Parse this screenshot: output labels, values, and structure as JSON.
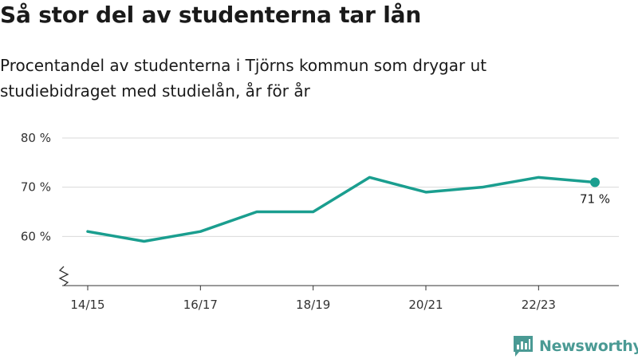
{
  "title": "Så stor del av studenterna tar lån",
  "subtitle": "Procentandel av studenterna i Tjörns kommun som drygar ut studiebidraget med studielån, år för år",
  "brand": {
    "name": "Newsworthy",
    "color": "#4a9a94",
    "icon": "bar-chart-logo-icon"
  },
  "chart_data": {
    "type": "line",
    "x": [
      "14/15",
      "15/16",
      "16/17",
      "17/18",
      "18/19",
      "19/20",
      "20/21",
      "21/22",
      "22/23",
      "23/24"
    ],
    "series": [
      {
        "values": [
          61,
          59,
          61,
          65,
          65,
          72,
          69,
          70,
          72,
          71
        ],
        "color": "#1a9e8f"
      }
    ],
    "x_tick_labels": [
      "14/15",
      "16/17",
      "18/19",
      "20/21",
      "22/23"
    ],
    "y_ticks": [
      {
        "value": 60,
        "label": "60 %"
      },
      {
        "value": 70,
        "label": "70 %"
      },
      {
        "value": 80,
        "label": "80 %"
      }
    ],
    "ylim": [
      50,
      80
    ],
    "y_axis_break": true,
    "grid": "horizontal",
    "end_label": "71 %"
  }
}
